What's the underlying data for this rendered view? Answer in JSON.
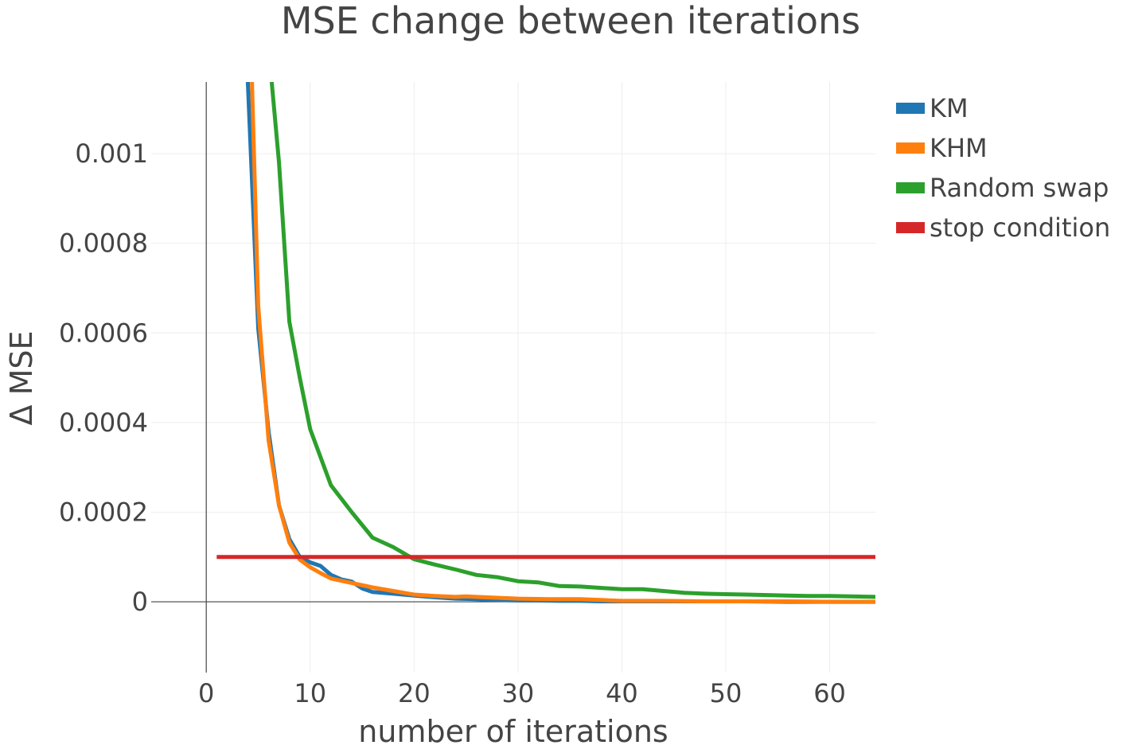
{
  "chart_data": {
    "type": "line",
    "title": "MSE change between iterations",
    "xlabel": "number of iterations",
    "ylabel": "Δ MSE",
    "xlim": [
      -5.3,
      64.4
    ],
    "ylim": [
      -0.000158,
      0.00116
    ],
    "x_ticks": [
      0,
      10,
      20,
      30,
      40,
      50,
      60
    ],
    "y_ticks": [
      {
        "value": 0,
        "label": "0"
      },
      {
        "value": 0.0002,
        "label": "0.0002"
      },
      {
        "value": 0.0004,
        "label": "0.0004"
      },
      {
        "value": 0.0006,
        "label": "0.0006"
      },
      {
        "value": 0.0008,
        "label": "0.0008"
      },
      {
        "value": 0.001,
        "label": "0.001"
      }
    ],
    "grid": true,
    "legend_position": "right",
    "series": [
      {
        "name": "KM",
        "color": "#1f77b4",
        "x": [
          4,
          5,
          6,
          7,
          8,
          9,
          10,
          11,
          12,
          13,
          14,
          15,
          16,
          18,
          20,
          22,
          24,
          26,
          28,
          30,
          32,
          34,
          36,
          38,
          40,
          44,
          48,
          52,
          56,
          60,
          64.4
        ],
        "y": [
          0.00116,
          0.00061,
          0.00038,
          0.000215,
          0.00014,
          0.0001,
          8.8e-05,
          8e-05,
          6e-05,
          5e-05,
          4.5e-05,
          3e-05,
          2.2e-05,
          1.8e-05,
          1.4e-05,
          1e-05,
          7e-06,
          6e-06,
          4e-06,
          3e-06,
          3e-06,
          2e-06,
          2e-06,
          1e-06,
          1e-06,
          1e-06,
          1e-06,
          1e-06,
          0,
          0,
          0
        ]
      },
      {
        "name": "KHM",
        "color": "#ff7f0e",
        "x": [
          4.4,
          5,
          6,
          7,
          8,
          9,
          10,
          11,
          12,
          14,
          16,
          18,
          20,
          22,
          24,
          25,
          26,
          28,
          30,
          33,
          36,
          38,
          40,
          44,
          48,
          52,
          56,
          60,
          64.4
        ],
        "y": [
          0.00116,
          0.00066,
          0.00036,
          0.000215,
          0.000132,
          9.4e-05,
          7.7e-05,
          6.4e-05,
          5.2e-05,
          4.2e-05,
          3.2e-05,
          2.4e-05,
          1.6e-05,
          1.3e-05,
          1.1e-05,
          1.2e-05,
          1.1e-05,
          9e-06,
          7e-06,
          6e-06,
          6e-06,
          4e-06,
          2e-06,
          2e-06,
          1e-06,
          1e-06,
          1e-06,
          0,
          0
        ]
      },
      {
        "name": "Random swap",
        "color": "#2ca02c",
        "x": [
          6.3,
          7,
          8,
          9,
          10,
          12,
          14,
          16,
          18,
          20,
          22,
          24,
          26,
          28,
          30,
          32,
          34,
          36,
          38,
          40,
          42,
          44,
          46,
          48,
          50,
          52,
          54,
          56,
          58,
          60,
          62,
          64.4
        ],
        "y": [
          0.00116,
          0.00098,
          0.000625,
          0.0005,
          0.000385,
          0.00026,
          0.0002,
          0.000143,
          0.000122,
          9.5e-05,
          8.3e-05,
          7.2e-05,
          6e-05,
          5.5e-05,
          4.6e-05,
          4.3e-05,
          3.5e-05,
          3.4e-05,
          3.1e-05,
          2.8e-05,
          2.8e-05,
          2.4e-05,
          2e-05,
          1.8e-05,
          1.7e-05,
          1.6e-05,
          1.5e-05,
          1.4e-05,
          1.3e-05,
          1.3e-05,
          1.2e-05,
          1.1e-05
        ]
      },
      {
        "name": "stop condition",
        "color": "#d62728",
        "x": [
          1,
          64.4
        ],
        "y": [
          0.0001,
          0.0001
        ]
      }
    ]
  }
}
